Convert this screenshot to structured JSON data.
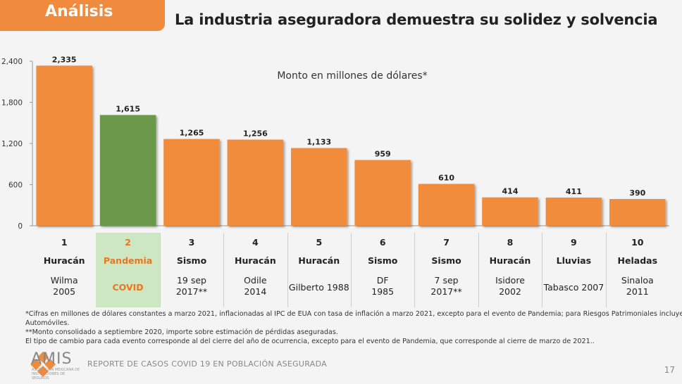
{
  "header": {
    "tag": "Análisis",
    "title": "La industria aseguradora demuestra su solidez y solvencia"
  },
  "chart_data": {
    "type": "bar",
    "annotation": "Monto en millones de dólares*",
    "ylim": [
      0,
      2400
    ],
    "yticks": [
      "0",
      "600",
      "1,200",
      "1,800",
      "2,400"
    ],
    "ytick_values": [
      0,
      600,
      1200,
      1800,
      2400
    ],
    "values": [
      2335,
      1615,
      1265,
      1256,
      1133,
      959,
      610,
      414,
      411,
      390
    ],
    "value_labels": [
      "2,335",
      "1,615",
      "1,265",
      "1,256",
      "1,133",
      "959",
      "610",
      "414",
      "411",
      "390"
    ],
    "colors": [
      "#f28c3e",
      "#6a9a4a",
      "#f28c3e",
      "#f28c3e",
      "#f28c3e",
      "#f28c3e",
      "#f28c3e",
      "#f28c3e",
      "#f28c3e",
      "#f28c3e"
    ]
  },
  "events": [
    {
      "num": "1",
      "type": "Huracán",
      "line1": "Wilma",
      "line2": "2005"
    },
    {
      "num": "2",
      "type": "Pandemia",
      "line1": "COVID",
      "line2": ""
    },
    {
      "num": "3",
      "type": "Sismo",
      "line1": "19 sep",
      "line2": "2017**"
    },
    {
      "num": "4",
      "type": "Huracán",
      "line1": "Odile",
      "line2": "2014"
    },
    {
      "num": "5",
      "type": "Huracán",
      "line1": "Gilberto 1988",
      "line2": ""
    },
    {
      "num": "6",
      "type": "Sismo",
      "line1": "DF",
      "line2": "1985"
    },
    {
      "num": "7",
      "type": "Sismo",
      "line1": "7 sep",
      "line2": "2017**"
    },
    {
      "num": "8",
      "type": "Huracán",
      "line1": "Isidore",
      "line2": "2002"
    },
    {
      "num": "9",
      "type": "Lluvias",
      "line1": "Tabasco 2007",
      "line2": ""
    },
    {
      "num": "10",
      "type": "Heladas",
      "line1": "Sinaloa",
      "line2": "2011"
    }
  ],
  "notes": {
    "n1": "*Cifras en millones de dólares constantes a marzo 2021, inflacionadas al IPC de EUA con tasa de inflación a marzo 2021, excepto para el evento de Pandemia; para Riesgos Patrimoniales incluye Daños y",
    "n1b": "Automóviles.",
    "n2": "**Monto consolidado a septiembre 2020, importe sobre estimación de pérdidas aseguradas.",
    "n3": "El tipo de cambio para cada evento corresponde al del cierre del año de ocurrencia, excepto para el evento de Pandemia, que corresponde al cierre de marzo de 2021.."
  },
  "footer": {
    "logo_text": "AMIS",
    "logo_sub": "ASOCIACIÓN MEXICANA DE INSTITUCIONES DE SEGUROS",
    "report": "REPORTE DE CASOS COVID 19 EN POBLACIÓN ASEGURADA",
    "page": "17"
  }
}
